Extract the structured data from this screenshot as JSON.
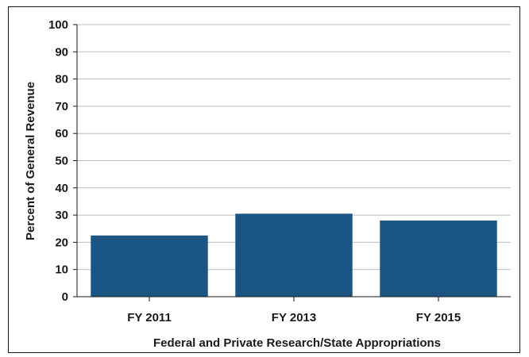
{
  "chart_data": {
    "type": "bar",
    "categories": [
      "FY 2011",
      "FY 2013",
      "FY 2015"
    ],
    "values": [
      22.5,
      30.5,
      28
    ],
    "xlabel": "Federal and Private Research/State Appropriations",
    "ylabel": "Percent of General Revenue",
    "ylim": [
      0,
      100
    ],
    "yticks": [
      "0",
      "10",
      "20",
      "30",
      "40",
      "50",
      "60",
      "70",
      "80",
      "90",
      "100"
    ],
    "grid": true,
    "colors": {
      "bar": "#1a5583",
      "grid": "#bdbdbd",
      "axis": "#1a1a1a"
    }
  }
}
